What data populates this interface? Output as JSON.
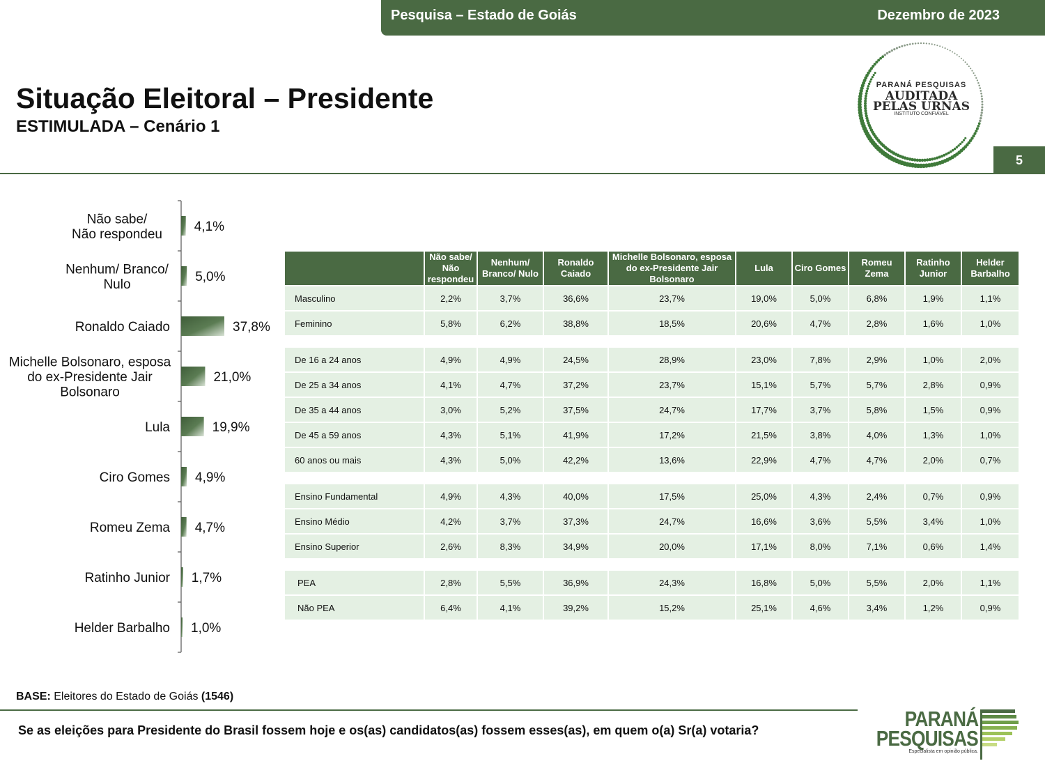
{
  "header": {
    "left": "Pesquisa – Estado de Goiás",
    "right": "Dezembro de 2023",
    "page_number": "5"
  },
  "title": "Situação Eleitoral – Presidente",
  "subtitle": "ESTIMULADA – Cenário 1",
  "seal": {
    "line1": "PARANÁ PESQUISAS",
    "line2": "AUDITADA",
    "line3": "PELAS URNAS",
    "line4": "INSTITUTO CONFIÁVEL"
  },
  "chart_data": {
    "type": "bar",
    "orientation": "horizontal",
    "categories": [
      [
        "Não sabe/",
        "Não respondeu"
      ],
      [
        "Nenhum/ Branco/",
        "Nulo"
      ],
      [
        "Ronaldo Caiado"
      ],
      [
        "Michelle Bolsonaro, esposa",
        "do ex-Presidente Jair",
        "Bolsonaro"
      ],
      [
        "Lula"
      ],
      [
        "Ciro Gomes"
      ],
      [
        "Romeu Zema"
      ],
      [
        "Ratinho Junior"
      ],
      [
        "Helder Barbalho"
      ]
    ],
    "values": [
      4.1,
      5.0,
      37.8,
      21.0,
      19.9,
      4.9,
      4.7,
      1.7,
      1.0
    ],
    "value_labels": [
      "4,1%",
      "5,0%",
      "37,8%",
      "21,0%",
      "19,9%",
      "4,9%",
      "4,7%",
      "1,7%",
      "1,0%"
    ],
    "xlim": [
      0,
      100
    ],
    "unit": "%",
    "bar_color": "#4a6a43"
  },
  "table": {
    "columns": [
      "",
      "Não sabe/ Não respondeu",
      "Nenhum/ Branco/ Nulo",
      "Ronaldo Caiado",
      "Michelle Bolsonaro, esposa do ex-Presidente Jair Bolsonaro",
      "Lula",
      "Ciro Gomes",
      "Romeu Zema",
      "Ratinho Junior",
      "Helder Barbalho"
    ],
    "groups": [
      {
        "rows": [
          {
            "label": "Masculino",
            "values": [
              "2,2%",
              "3,7%",
              "36,6%",
              "23,7%",
              "19,0%",
              "5,0%",
              "6,8%",
              "1,9%",
              "1,1%"
            ]
          },
          {
            "label": "Feminino",
            "values": [
              "5,8%",
              "6,2%",
              "38,8%",
              "18,5%",
              "20,6%",
              "4,7%",
              "2,8%",
              "1,6%",
              "1,0%"
            ]
          }
        ]
      },
      {
        "rows": [
          {
            "label": "De 16 a 24 anos",
            "values": [
              "4,9%",
              "4,9%",
              "24,5%",
              "28,9%",
              "23,0%",
              "7,8%",
              "2,9%",
              "1,0%",
              "2,0%"
            ]
          },
          {
            "label": "De 25 a 34 anos",
            "values": [
              "4,1%",
              "4,7%",
              "37,2%",
              "23,7%",
              "15,1%",
              "5,7%",
              "5,7%",
              "2,8%",
              "0,9%"
            ]
          },
          {
            "label": "De 35 a 44 anos",
            "values": [
              "3,0%",
              "5,2%",
              "37,5%",
              "24,7%",
              "17,7%",
              "3,7%",
              "5,8%",
              "1,5%",
              "0,9%"
            ]
          },
          {
            "label": "De 45 a 59 anos",
            "values": [
              "4,3%",
              "5,1%",
              "41,9%",
              "17,2%",
              "21,5%",
              "3,8%",
              "4,0%",
              "1,3%",
              "1,0%"
            ]
          },
          {
            "label": "60 anos ou mais",
            "values": [
              "4,3%",
              "5,0%",
              "42,2%",
              "13,6%",
              "22,9%",
              "4,7%",
              "4,7%",
              "2,0%",
              "0,7%"
            ]
          }
        ]
      },
      {
        "rows": [
          {
            "label": "Ensino Fundamental",
            "values": [
              "4,9%",
              "4,3%",
              "40,0%",
              "17,5%",
              "25,0%",
              "4,3%",
              "2,4%",
              "0,7%",
              "0,9%"
            ]
          },
          {
            "label": "Ensino Médio",
            "values": [
              "4,2%",
              "3,7%",
              "37,3%",
              "24,7%",
              "16,6%",
              "3,6%",
              "5,5%",
              "3,4%",
              "1,0%"
            ]
          },
          {
            "label": "Ensino Superior",
            "values": [
              "2,6%",
              "8,3%",
              "34,9%",
              "20,0%",
              "17,1%",
              "8,0%",
              "7,1%",
              "0,6%",
              "1,4%"
            ]
          }
        ]
      },
      {
        "rows": [
          {
            "label": "PEA",
            "values": [
              "2,8%",
              "5,5%",
              "36,9%",
              "24,3%",
              "16,8%",
              "5,0%",
              "5,5%",
              "2,0%",
              "1,1%"
            ]
          },
          {
            "label": "Não PEA",
            "values": [
              "6,4%",
              "4,1%",
              "39,2%",
              "15,2%",
              "25,1%",
              "4,6%",
              "3,4%",
              "1,2%",
              "0,9%"
            ]
          }
        ]
      }
    ]
  },
  "footer": {
    "base_label": "BASE:",
    "base_text": " Eleitores do Estado de Goiás ",
    "base_count": "(1546)",
    "question": "Se as eleições para Presidente do Brasil fossem hoje e os(as) candidatos(as) fossem esses(as), em quem o(a) Sr(a) votaria?"
  },
  "logo": {
    "line1": "PARANÁ",
    "line2": "PESQUISAS",
    "tagline": "Especialista em opinião pública."
  }
}
